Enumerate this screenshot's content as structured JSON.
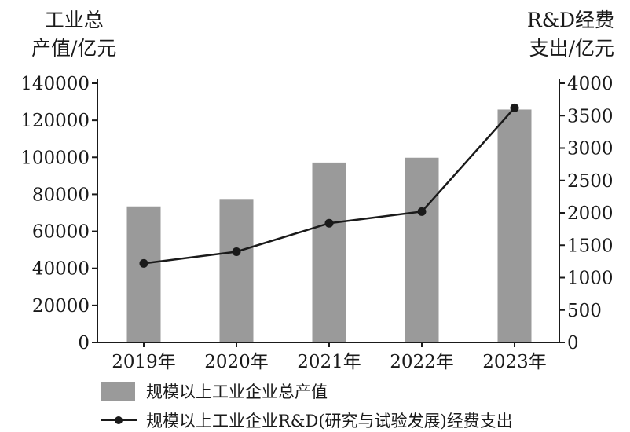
{
  "chart_data": {
    "type": "bar+line",
    "categories": [
      "2019年",
      "2020年",
      "2021年",
      "2022年",
      "2023年"
    ],
    "series": [
      {
        "name": "规模以上工业企业总产值",
        "type": "bar",
        "axis": "left",
        "values": [
          73500,
          77500,
          97200,
          99800,
          125800
        ],
        "color": "#9a9a9a"
      },
      {
        "name": "规模以上工业企业R&D(研究与试验发展)经费支出",
        "type": "line",
        "axis": "right",
        "values": [
          1220,
          1400,
          1840,
          2020,
          3620
        ],
        "color": "#1a1a1a"
      }
    ],
    "left_axis": {
      "label_line1": "工业总",
      "label_line2": "产值/亿元",
      "ylim": [
        0,
        140000
      ],
      "ticks": [
        0,
        20000,
        40000,
        60000,
        80000,
        100000,
        120000,
        140000
      ]
    },
    "right_axis": {
      "label_line1": "R&D经费",
      "label_line2": "支出/亿元",
      "ylim": [
        0,
        4000
      ],
      "ticks": [
        0,
        500,
        1000,
        1500,
        2000,
        2500,
        3000,
        3500,
        4000
      ]
    },
    "grid": false,
    "legend_position": "bottom"
  }
}
